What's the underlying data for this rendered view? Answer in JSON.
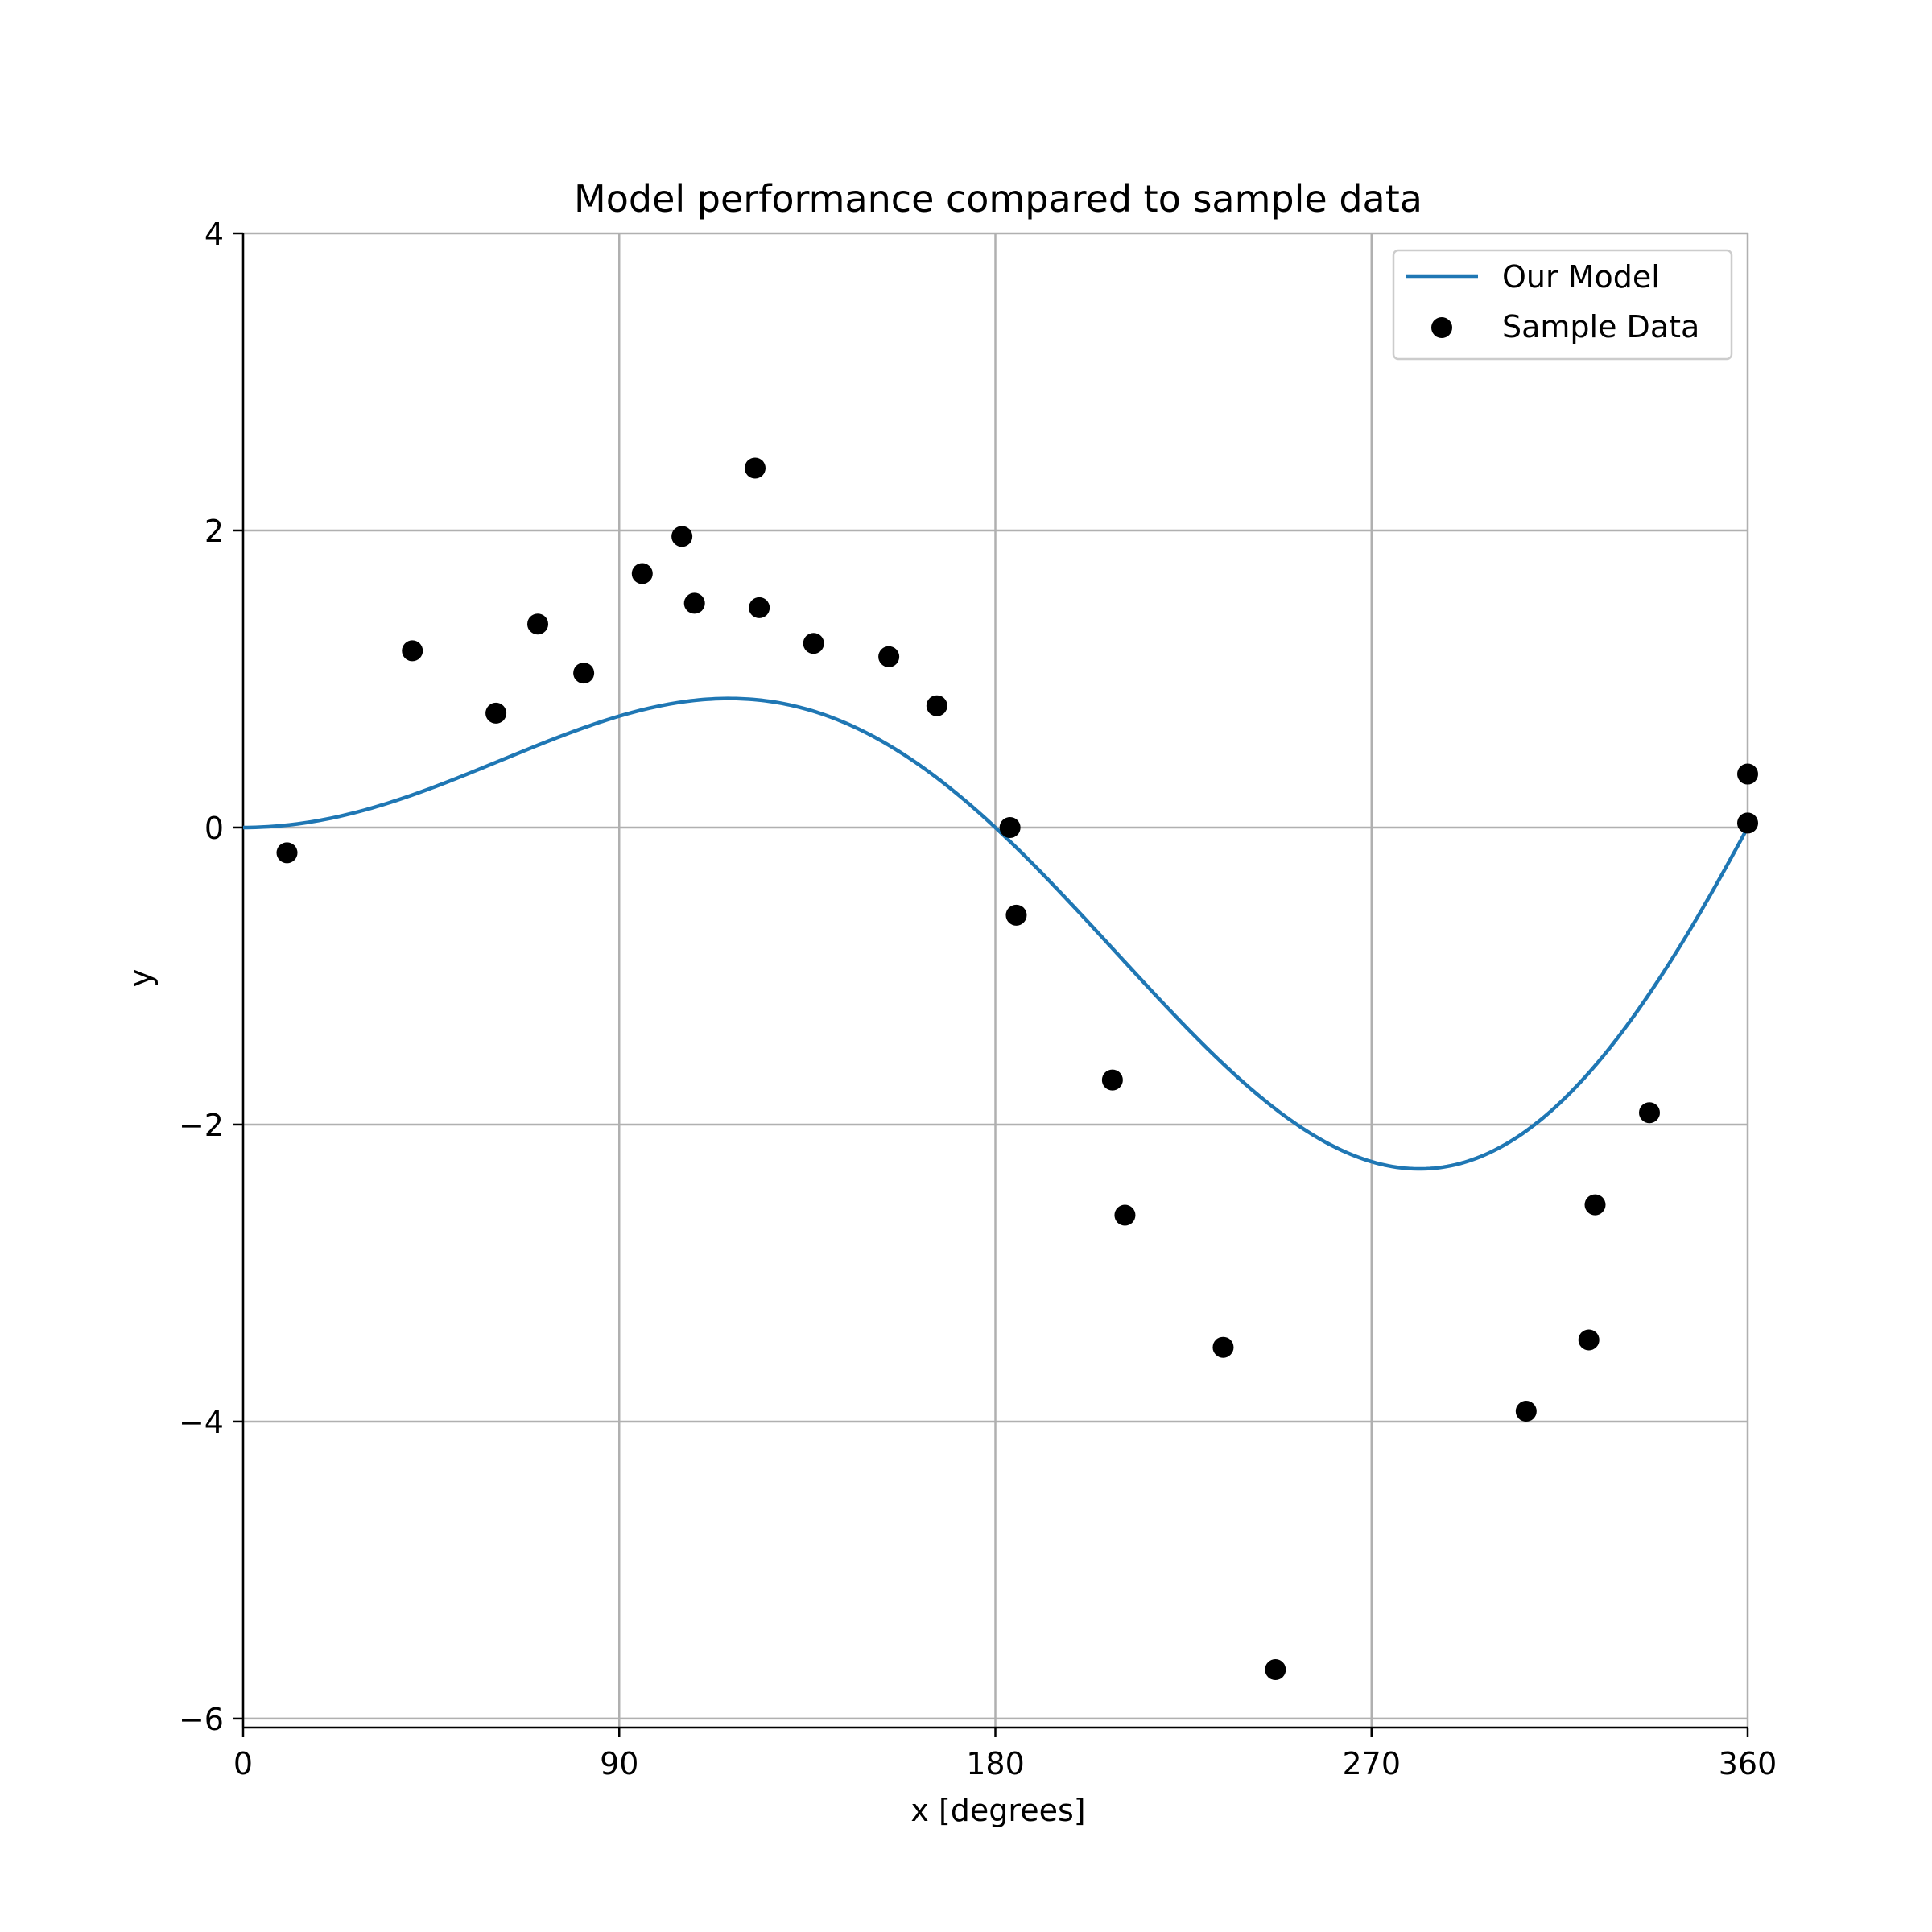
{
  "chart_data": {
    "type": "line+scatter",
    "title": "Model performance compared to sample data",
    "xlabel": "x [degrees]",
    "ylabel": "y",
    "xlim": [
      0,
      360
    ],
    "ylim": [
      -6.06,
      4
    ],
    "xticks": [
      0,
      90,
      180,
      270,
      360
    ],
    "yticks": [
      -6,
      -4,
      -2,
      0,
      2,
      4
    ],
    "xtick_labels": [
      "0",
      "90",
      "180",
      "270",
      "360"
    ],
    "ytick_labels": [
      "−6",
      "−4",
      "−2",
      "0",
      "2",
      "4"
    ],
    "grid": true,
    "legend_position": "top-right",
    "colors": {
      "model": "#1f77b4",
      "samples": "#000000",
      "grid": "#b0b0b0"
    },
    "series": [
      {
        "name": "Our Model",
        "type": "line",
        "formula": "3*sin(x)*x/360 with x in degrees"
      },
      {
        "name": "Sample Data",
        "type": "scatter",
        "points": [
          [
            10.5,
            -0.17
          ],
          [
            40.5,
            1.19
          ],
          [
            60.5,
            0.77
          ],
          [
            70.5,
            1.37
          ],
          [
            81.5,
            1.04
          ],
          [
            95.5,
            1.71
          ],
          [
            105,
            1.96
          ],
          [
            108,
            1.51
          ],
          [
            122.5,
            2.42
          ],
          [
            123.5,
            1.48
          ],
          [
            136.5,
            1.24
          ],
          [
            154.5,
            1.15
          ],
          [
            166,
            0.82
          ],
          [
            183.5,
            0.0
          ],
          [
            185,
            -0.59
          ],
          [
            208,
            -1.7
          ],
          [
            211,
            -2.61
          ],
          [
            234.5,
            -3.5
          ],
          [
            247,
            -5.67
          ],
          [
            307,
            -3.93
          ],
          [
            322,
            -3.45
          ],
          [
            323.5,
            -2.54
          ],
          [
            336.5,
            -1.92
          ],
          [
            360,
            0.36
          ],
          [
            360,
            0.03
          ]
        ]
      }
    ]
  }
}
